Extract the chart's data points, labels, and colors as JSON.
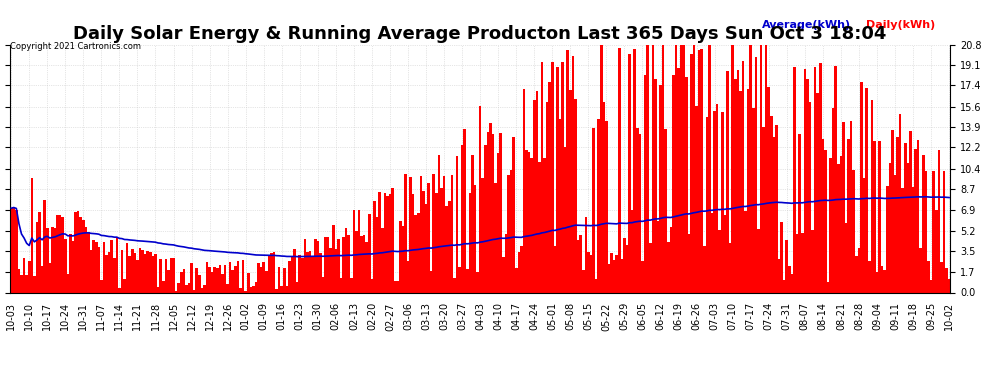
{
  "title": "Daily Solar Energy & Running Average Producton Last 365 Days Sun Oct 3 18:04",
  "copyright_text": "Copyright 2021 Cartronics.com",
  "legend_average": "Average(kWh)",
  "legend_daily": "Daily(kWh)",
  "yticks": [
    0.0,
    1.7,
    3.5,
    5.2,
    6.9,
    8.7,
    10.4,
    12.2,
    13.9,
    15.6,
    17.4,
    19.1,
    20.8
  ],
  "ymax": 20.8,
  "ymin": 0.0,
  "bar_color": "#ff0000",
  "line_color": "#0000cc",
  "avg_color": "#0000cc",
  "daily_color": "#ff0000",
  "background_color": "#ffffff",
  "grid_color": "#cccccc",
  "title_fontsize": 13,
  "axis_fontsize": 7,
  "num_bars": 365
}
